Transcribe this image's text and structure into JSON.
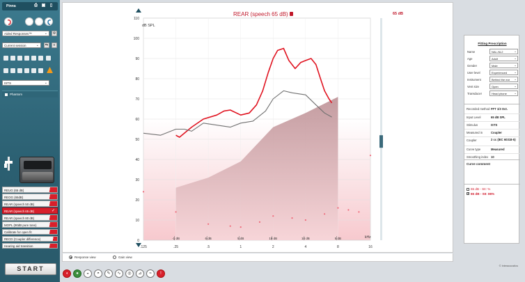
{
  "left_panel": {
    "header_title": "Pinna",
    "aided_select": "Aided Responses™",
    "session_select": "Current session",
    "signal_select": "ISTS",
    "phantom_label": "Phantom",
    "measurements": [
      {
        "label": "REUG (65 dB)",
        "active": false
      },
      {
        "label": "REOG (65dB)",
        "active": false
      },
      {
        "label": "REAR (speech 50 dB)",
        "active": false
      },
      {
        "label": "REAR (speech 65 dB)",
        "active": true
      },
      {
        "label": "REAR (speech 80 dB)",
        "active": false
      },
      {
        "label": "MOPL (90dB pure tone)",
        "active": false
      },
      {
        "label": "Calibrate for open fit",
        "active": false
      },
      {
        "label": "RECD (Coupler difference)",
        "active": false
      },
      {
        "label": "Hearing aid transition",
        "active": false
      }
    ],
    "start_label": "START"
  },
  "chart": {
    "title": "REAR (speech 65 dB)",
    "badge": "65 dB",
    "ylabel": "dB SPL",
    "xlabel_unit": "kHz"
  },
  "chart_data": {
    "type": "line",
    "title": "REAR (speech 65 dB)",
    "ylabel": "dB SPL",
    "xlabel": "kHz",
    "ylim": [
      0,
      110
    ],
    "yticks": [
      0,
      10,
      20,
      30,
      40,
      50,
      60,
      70,
      80,
      90,
      100,
      110
    ],
    "xticks": [
      ".125",
      ".25",
      ".5",
      "1",
      "2",
      "4",
      "8",
      "16"
    ],
    "dial_labels": [
      "-1 dB",
      "6 dB",
      "5 dB",
      "19 dB",
      "10 dB",
      "5 dB"
    ],
    "series": [
      {
        "name": "65 dB - SII: 86%",
        "color": "#e0121f",
        "points": [
          [
            0.25,
            52
          ],
          [
            0.27,
            51
          ],
          [
            0.3,
            53
          ],
          [
            0.35,
            56
          ],
          [
            0.45,
            60
          ],
          [
            0.6,
            62
          ],
          [
            0.7,
            64
          ],
          [
            0.8,
            64.5
          ],
          [
            1.0,
            62
          ],
          [
            1.2,
            63
          ],
          [
            1.4,
            67
          ],
          [
            1.6,
            74
          ],
          [
            1.8,
            83
          ],
          [
            2.0,
            90
          ],
          [
            2.2,
            94
          ],
          [
            2.5,
            95
          ],
          [
            2.8,
            89
          ],
          [
            3.2,
            85
          ],
          [
            3.6,
            88
          ],
          [
            4.0,
            89
          ],
          [
            4.5,
            90
          ],
          [
            5.0,
            87
          ],
          [
            5.5,
            80
          ],
          [
            6.0,
            74
          ],
          [
            6.6,
            70
          ],
          [
            7.0,
            68
          ]
        ]
      },
      {
        "name": "65 dB - SII: %",
        "color": "#707070",
        "points": [
          [
            0.125,
            53
          ],
          [
            0.18,
            52
          ],
          [
            0.25,
            55
          ],
          [
            0.3,
            55
          ],
          [
            0.35,
            54
          ],
          [
            0.45,
            58
          ],
          [
            0.6,
            57
          ],
          [
            0.8,
            56
          ],
          [
            1.0,
            58
          ],
          [
            1.3,
            59
          ],
          [
            1.7,
            64
          ],
          [
            2.0,
            70
          ],
          [
            2.5,
            74
          ],
          [
            3.0,
            73
          ],
          [
            4.0,
            72
          ],
          [
            5.0,
            67
          ],
          [
            6.0,
            63
          ],
          [
            7.0,
            61
          ]
        ]
      }
    ],
    "target_area": [
      [
        0.25,
        26
      ],
      [
        0.5,
        31
      ],
      [
        1.0,
        39
      ],
      [
        2.0,
        56
      ],
      [
        4.0,
        63
      ],
      [
        8.0,
        71
      ]
    ],
    "scatter": [
      [
        0.125,
        24
      ],
      [
        0.25,
        14
      ],
      [
        0.5,
        8
      ],
      [
        0.8,
        7
      ],
      [
        1.0,
        6.5
      ],
      [
        1.5,
        9
      ],
      [
        2.0,
        12
      ],
      [
        3.0,
        11
      ],
      [
        4.0,
        10
      ],
      [
        6.0,
        13
      ],
      [
        8.0,
        16
      ],
      [
        10.0,
        15
      ],
      [
        12.5,
        14
      ],
      [
        16.0,
        42
      ]
    ]
  },
  "view": {
    "response_view": "Response view",
    "gain_view": "Gain view"
  },
  "fitting_prescription": {
    "title": "Fitting Prescription",
    "rows": [
      {
        "label": "Name",
        "value": "NAL-NL2"
      },
      {
        "label": "Age",
        "value": "Adult"
      },
      {
        "label": "Gender",
        "value": "Male"
      },
      {
        "label": "User level",
        "value": "Experienced"
      },
      {
        "label": "Instrument",
        "value": "Behind the ear"
      },
      {
        "label": "Vent size",
        "value": "Open"
      },
      {
        "label": "Transducer",
        "value": "Head phone"
      }
    ]
  },
  "recorded": [
    {
      "label": "Recorded method",
      "value": "FFT 1/3 Oct."
    },
    {
      "label": "Input Level",
      "value": "65 dB SPL"
    },
    {
      "label": "Stimulus",
      "value": "ISTS"
    },
    {
      "label": "Measured in",
      "value": "Coupler"
    },
    {
      "label": "Coupler",
      "value": "2 cc (IEC 60318-5)"
    },
    {
      "label": "Curve type",
      "value": "Measured"
    },
    {
      "label": "Smoothing index",
      "value": "10"
    }
  ],
  "curve_comment_title": "Curve comment",
  "legend": [
    {
      "label": "65 dB - SII: %",
      "checked": false
    },
    {
      "label": "65 dB - SII: 86%",
      "checked": true
    }
  ],
  "copyright": "© Interacoustics"
}
